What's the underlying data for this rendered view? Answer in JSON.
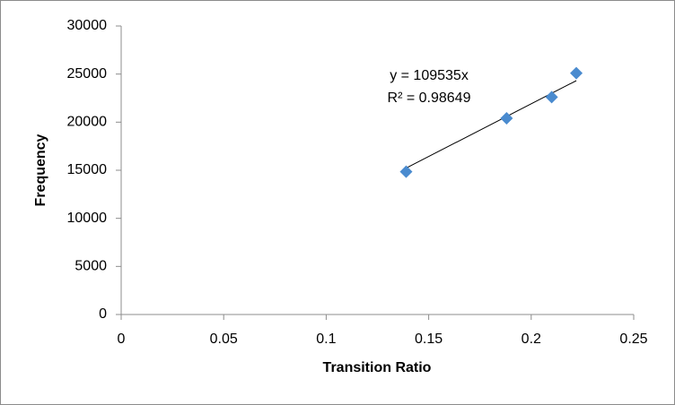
{
  "chart_data": {
    "type": "scatter",
    "x_label": "Transition Ratio",
    "y_label": "Frequency",
    "x": [
      0.139,
      0.188,
      0.21,
      0.222
    ],
    "series": [
      {
        "name": "Frequency",
        "color": "#4a8bcf",
        "values": [
          14850,
          20400,
          22600,
          25100
        ]
      }
    ],
    "xlim": [
      0,
      0.25
    ],
    "xticks": [
      0,
      0.05,
      0.1,
      0.15,
      0.2,
      0.25
    ],
    "ylim": [
      0,
      30000
    ],
    "yticks": [
      0,
      5000,
      10000,
      15000,
      20000,
      25000,
      30000
    ],
    "trendline": {
      "slope": 109535,
      "equation": "y = 109535x",
      "r_squared": "R² = 0.98649"
    }
  }
}
